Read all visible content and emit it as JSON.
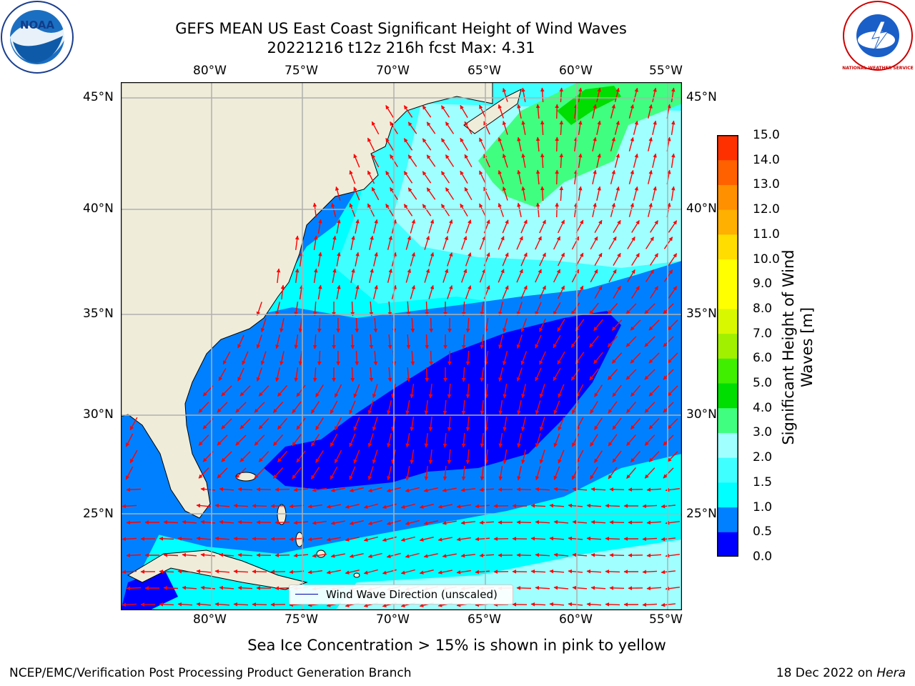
{
  "title_line1": "GEFS MEAN US East Coast Significant Height of Wind Waves",
  "title_line2": "20221216 t12z 216h fcst   Max: 4.31",
  "logos": {
    "left": "NOAA",
    "right": "NATIONAL WEATHER SERVICE"
  },
  "lon_labels": [
    "80°W",
    "75°W",
    "70°W",
    "65°W",
    "60°W",
    "55°W"
  ],
  "lat_labels": [
    "45°N",
    "40°N",
    "35°N",
    "30°N",
    "25°N"
  ],
  "colorbar": {
    "title_line1": "Significant Height of Wind",
    "title_line2": "Waves [m]",
    "ticks": [
      "15.0",
      "14.0",
      "13.0",
      "12.0",
      "11.0",
      "10.0",
      "9.0",
      "8.0",
      "7.0",
      "6.0",
      "5.0",
      "4.0",
      "3.0",
      "2.0",
      "1.5",
      "1.0",
      "0.5",
      "0.0"
    ],
    "colors": [
      "#0000ff",
      "#0080ff",
      "#00ffff",
      "#40ffff",
      "#a0ffff",
      "#40ff80",
      "#00dd00",
      "#40ee00",
      "#a0f000",
      "#d8f800",
      "#ffff00",
      "#ffff00",
      "#ffdd00",
      "#ffb000",
      "#ff9000",
      "#ff6000",
      "#ff3000",
      "#ff0000"
    ]
  },
  "legend_label": "Wind Wave Direction (unscaled)",
  "subnote": "Sea Ice Concentration > 15% is shown in pink to yellow",
  "footer_left": "NCEP/EMC/Verification Post Processing Product Generation Branch",
  "footer_right_date": "18 Dec 2022 on ",
  "footer_right_host": "Hera",
  "map_colors": {
    "land": "#efecda",
    "ocean_0": "#0000ff",
    "ocean_05": "#0080ff",
    "ocean_10": "#00ffff",
    "ocean_15": "#40ffff",
    "ocean_20": "#a0ffff",
    "ocean_30": "#40ff80",
    "ocean_40": "#00dd00",
    "arrow": "#ff0000",
    "grid": "#b0b0b0"
  }
}
